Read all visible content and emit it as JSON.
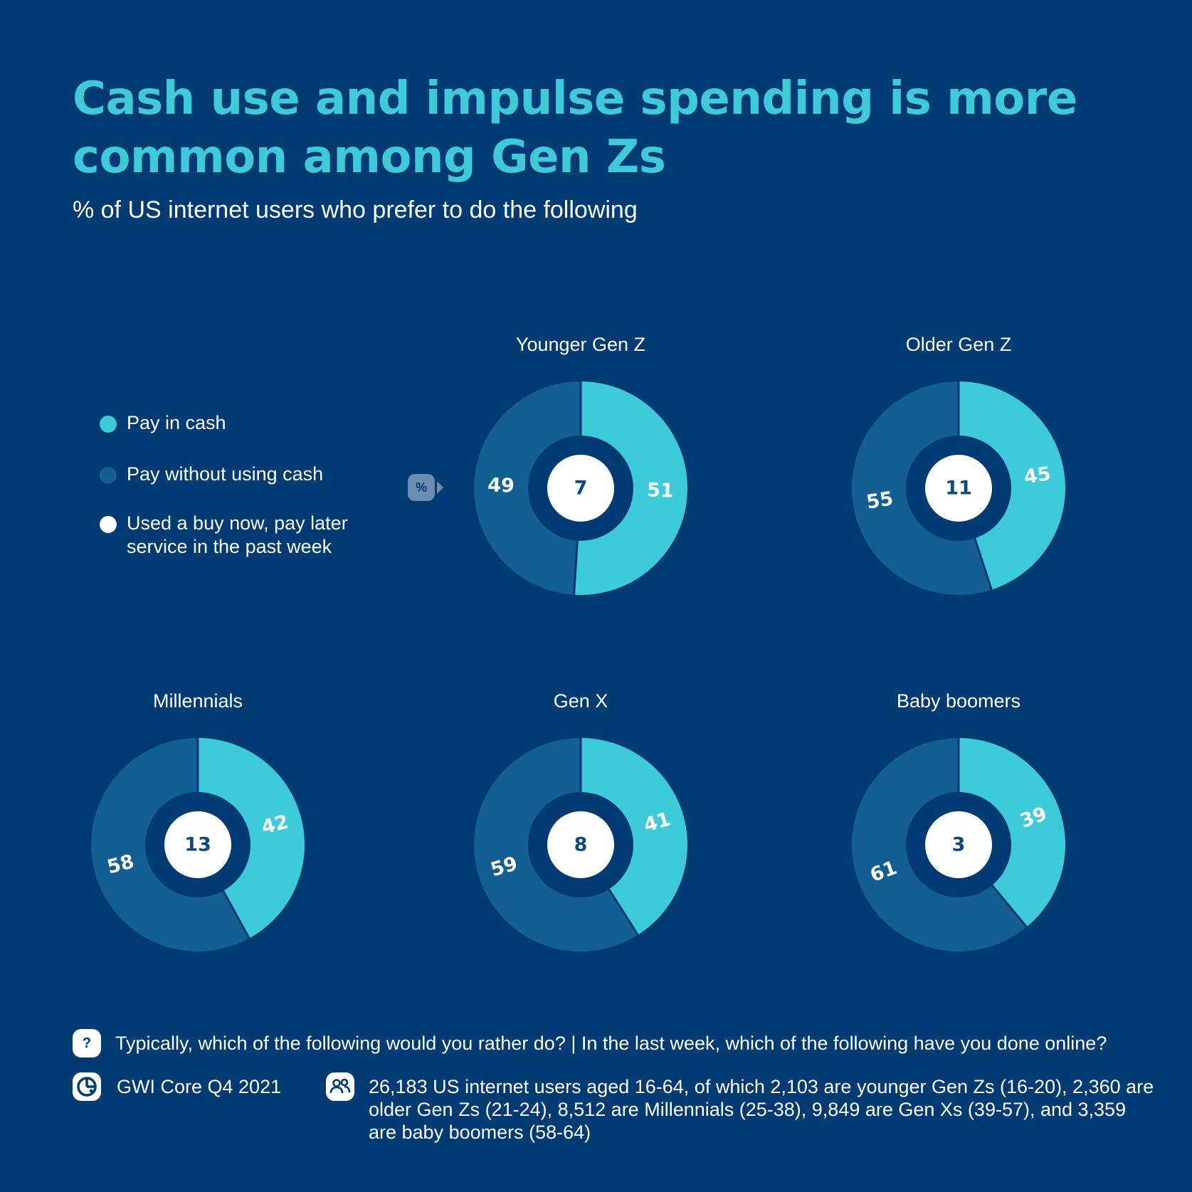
{
  "title": "Cash use and impulse spending is more common among Gen Zs",
  "subtitle": "% of US internet users who prefer to do the following",
  "legend": [
    {
      "label": "Pay in cash",
      "color": "#3dcbd9"
    },
    {
      "label": "Pay without using cash",
      "color": "#135e92"
    },
    {
      "label": "Used a buy now, pay later service in the past week",
      "color": "#ffffff"
    }
  ],
  "percent_badge": "%",
  "colors": {
    "background": "#003b73",
    "cash": "#3dcbd9",
    "cashless": "#135e92",
    "bnpl": "#ffffff",
    "bnpl_text": "#0d4a80"
  },
  "chart_data": {
    "type": "pie",
    "subtype": "donut",
    "series_names": [
      "Pay in cash",
      "Pay without using cash",
      "Used a buy now, pay later service in the past week"
    ],
    "groups": [
      {
        "name": "Younger Gen Z",
        "cash": 51,
        "cashless": 49,
        "bnpl": 7
      },
      {
        "name": "Older Gen Z",
        "cash": 45,
        "cashless": 55,
        "bnpl": 11
      },
      {
        "name": "Millennials",
        "cash": 42,
        "cashless": 58,
        "bnpl": 13
      },
      {
        "name": "Gen X",
        "cash": 41,
        "cashless": 59,
        "bnpl": 8
      },
      {
        "name": "Baby boomers",
        "cash": 39,
        "cashless": 61,
        "bnpl": 3
      }
    ]
  },
  "footer": {
    "question": "Typically, which of the following would you rather do? | In the last week, which of the following have you done online?",
    "source": "GWI Core Q4 2021",
    "base": "26,183 US internet users aged 16-64, of which 2,103 are younger Gen Zs (16-20), 2,360 are older Gen Zs (21-24), 8,512 are Millennials (25-38), 9,849 are Gen Xs (39-57), and 3,359 are baby boomers (58-64)",
    "question_icon": "question-icon",
    "source_icon": "gwi-logo-icon",
    "base_icon": "people-icon"
  }
}
